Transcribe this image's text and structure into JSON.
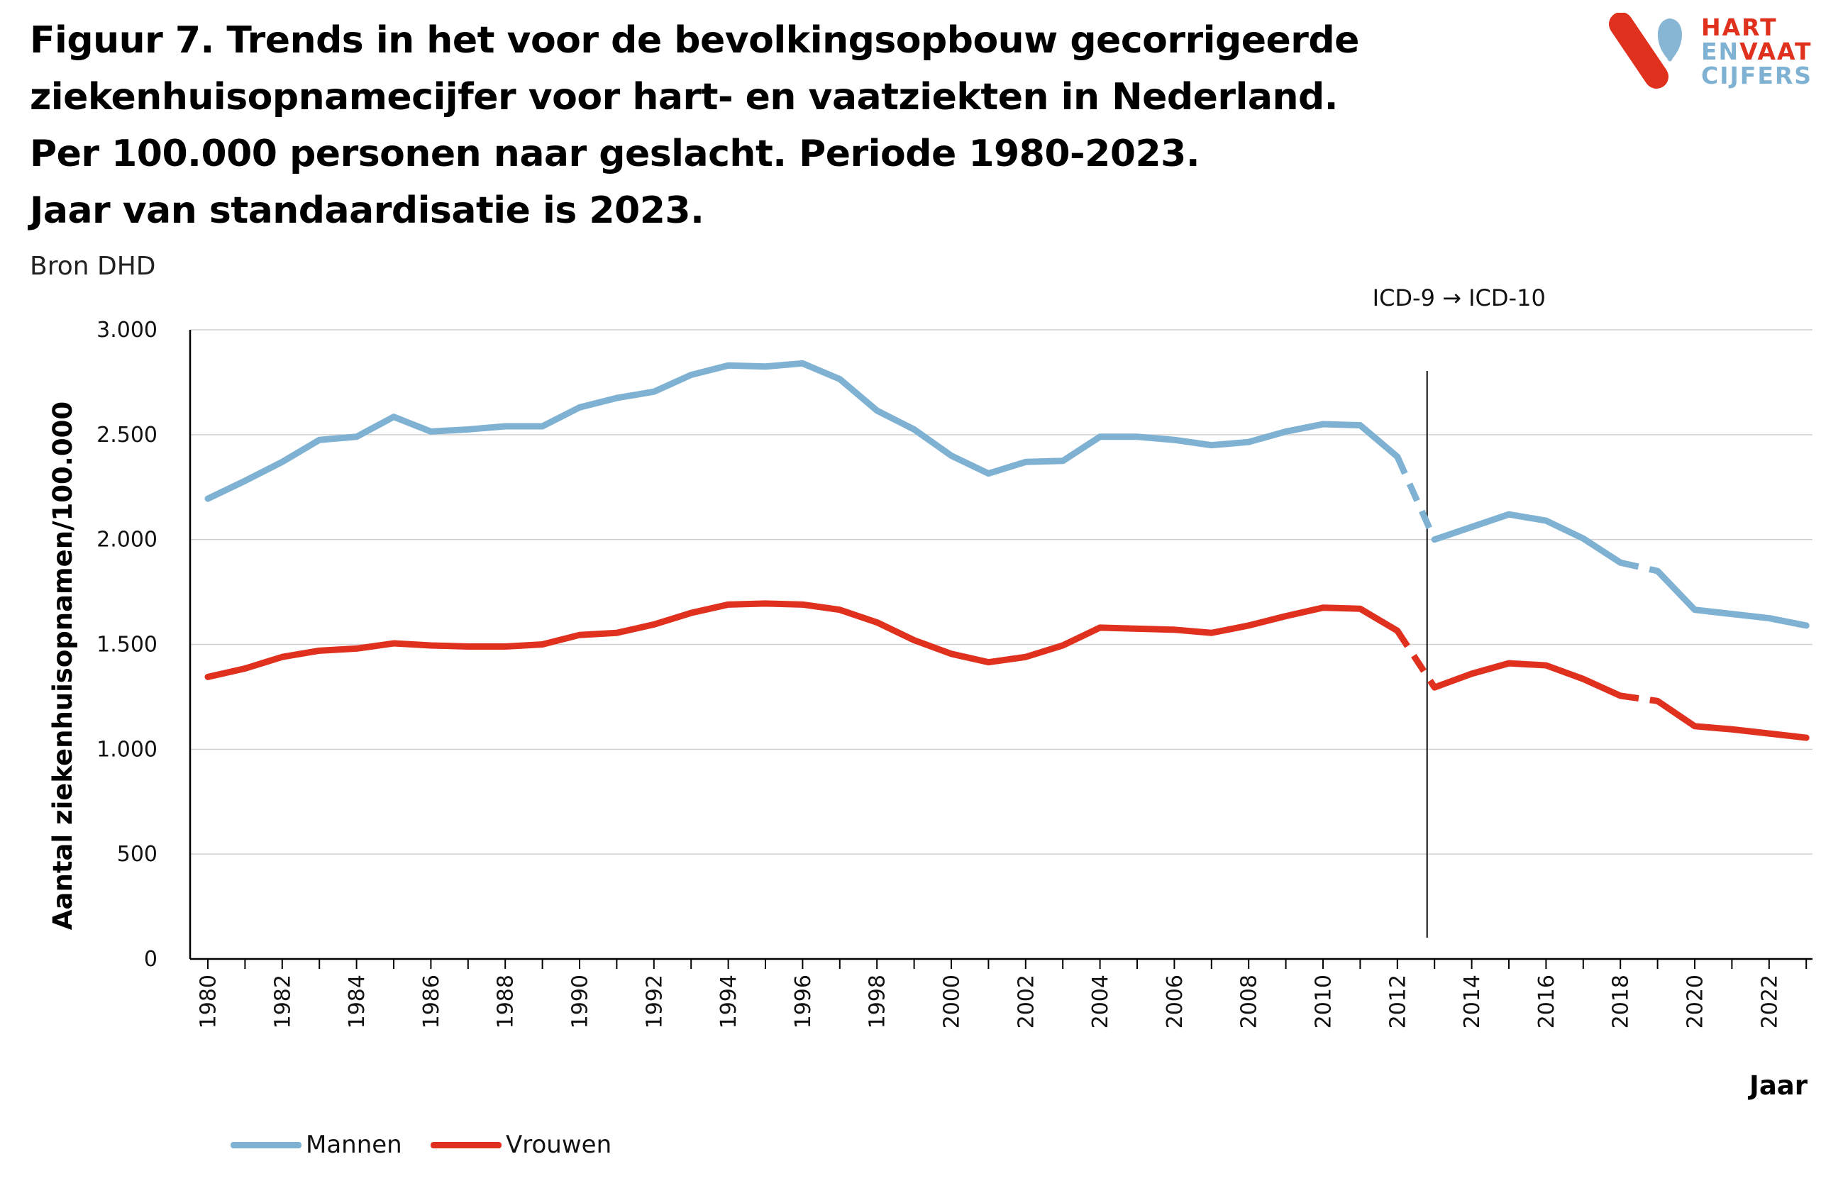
{
  "title_lines": [
    "Figuur  7. Trends in het voor de bevolkingsopbouw gecorrigeerde",
    "ziekenhuisopnamecijfer voor hart- en vaatziekten in Nederland.",
    "Per 100.000 personen naar geslacht. Periode 1980-2023.",
    "Jaar van standaardisatie is 2023."
  ],
  "source": "Bron DHD",
  "logo": {
    "line1": "HART",
    "line2_a": "EN",
    "line2_b": "VAAT",
    "line3": "CIJFERS",
    "red": "#e0301e",
    "blue": "#7fb2d2"
  },
  "chart_data": {
    "type": "line",
    "xlabel": "Jaar",
    "ylabel": "Aantal ziekenhuisopnamen/100.000",
    "ylim": [
      0,
      3000
    ],
    "yticks": [
      0,
      500,
      1000,
      1500,
      2000,
      2500,
      3000
    ],
    "ytick_labels": [
      "0",
      "500",
      "1.000",
      "1.500",
      "2.000",
      "2.500",
      "3.000"
    ],
    "xticks": [
      1980,
      1982,
      1984,
      1986,
      1988,
      1990,
      1992,
      1994,
      1996,
      1998,
      2000,
      2002,
      2004,
      2006,
      2008,
      2010,
      2012,
      2014,
      2016,
      2018,
      2020,
      2022
    ],
    "grid": true,
    "legend_position": "bottom-left",
    "annotation": {
      "text": "ICD-9 → ICD-10",
      "x": 2012.8
    },
    "dashed_segments": [
      [
        2012,
        2013
      ],
      [
        2018,
        2019
      ]
    ],
    "x": [
      1980,
      1981,
      1982,
      1983,
      1984,
      1985,
      1986,
      1987,
      1988,
      1989,
      1990,
      1991,
      1992,
      1993,
      1994,
      1995,
      1996,
      1997,
      1998,
      1999,
      2000,
      2001,
      2002,
      2003,
      2004,
      2005,
      2006,
      2007,
      2008,
      2009,
      2010,
      2011,
      2012,
      2013,
      2014,
      2015,
      2016,
      2017,
      2018,
      2019,
      2020,
      2021,
      2022,
      2023
    ],
    "series": [
      {
        "name": "Mannen",
        "color": "#7fb2d2",
        "values": [
          2195,
          2280,
          2370,
          2475,
          2490,
          2585,
          2515,
          2525,
          2540,
          2540,
          2630,
          2675,
          2705,
          2785,
          2830,
          2825,
          2840,
          2765,
          2615,
          2525,
          2400,
          2315,
          2370,
          2375,
          2490,
          2490,
          2475,
          2450,
          2465,
          2515,
          2550,
          2545,
          2395,
          2000,
          2060,
          2120,
          2090,
          2005,
          1890,
          1850,
          1665,
          1645,
          1625,
          1590
        ]
      },
      {
        "name": "Vrouwen",
        "color": "#e0301e",
        "values": [
          1345,
          1385,
          1440,
          1470,
          1480,
          1505,
          1495,
          1490,
          1490,
          1500,
          1545,
          1555,
          1595,
          1650,
          1690,
          1695,
          1690,
          1665,
          1605,
          1520,
          1455,
          1415,
          1440,
          1495,
          1580,
          1575,
          1570,
          1555,
          1590,
          1635,
          1675,
          1670,
          1565,
          1295,
          1360,
          1410,
          1400,
          1335,
          1255,
          1230,
          1110,
          1095,
          1075,
          1055
        ]
      }
    ]
  }
}
